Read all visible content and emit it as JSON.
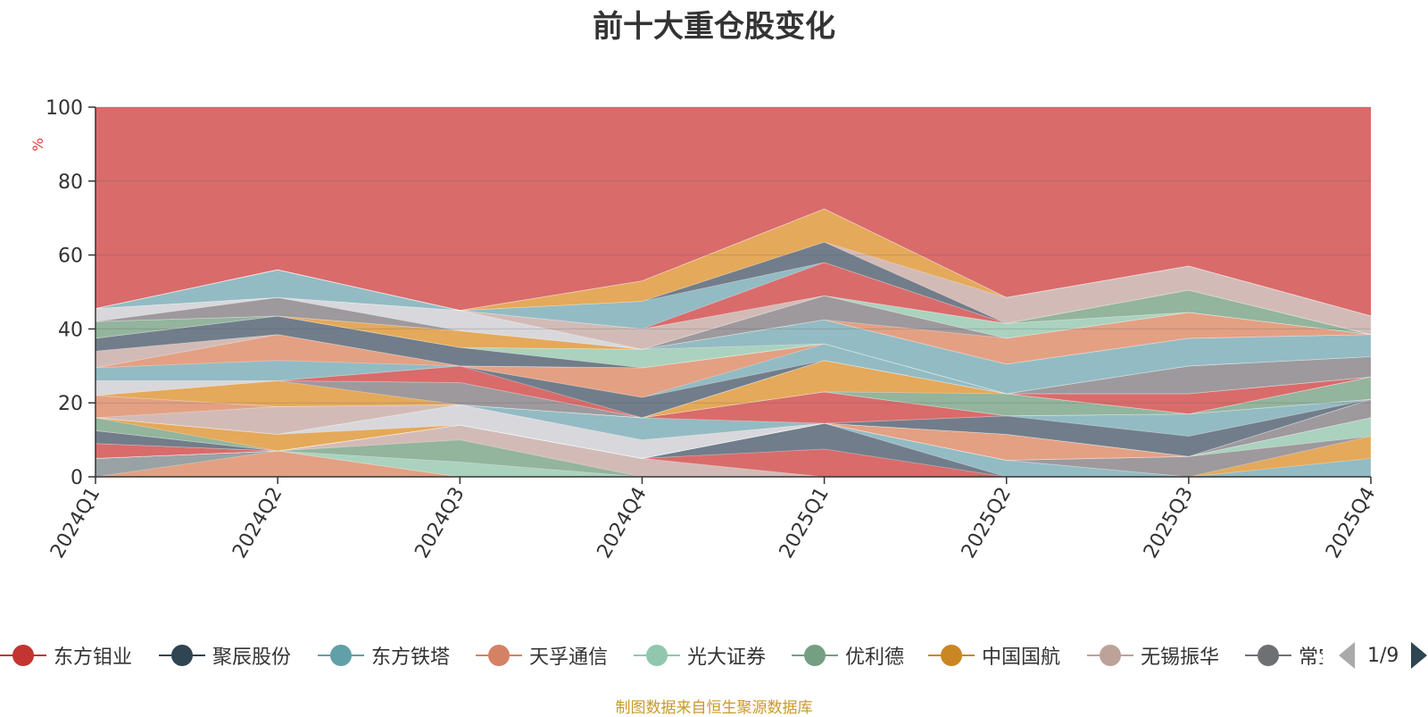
{
  "title": "前十大重仓股变化",
  "source_note": "制图数据来自恒生聚源数据库",
  "legend_pager": "1/9",
  "chart_data": {
    "type": "area",
    "stacked": true,
    "title": "前十大重仓股变化",
    "ylabel": "%",
    "ylim": [
      0,
      100
    ],
    "yticks": [
      0,
      20,
      40,
      60,
      80,
      100
    ],
    "grid": true,
    "legend_position": "bottom",
    "categories": [
      "2024Q1",
      "2024Q2",
      "2024Q3",
      "2024Q4",
      "2025Q1",
      "2025Q2",
      "2025Q3",
      "2025Q4"
    ],
    "series": [
      {
        "name": "",
        "color": "#e4a385",
        "values": [
          0,
          7,
          0,
          0,
          0,
          0,
          0,
          0
        ]
      },
      {
        "name": "",
        "color": "#96a5a8",
        "values": [
          5,
          0,
          0,
          0,
          0,
          0,
          0,
          0
        ]
      },
      {
        "name": "",
        "color": "#a8d8c3",
        "values": [
          0,
          0,
          4,
          0,
          0,
          0,
          0,
          0
        ]
      },
      {
        "name": "",
        "color": "#8fb8a0",
        "values": [
          0,
          0,
          6,
          0,
          0,
          0,
          0,
          0
        ]
      },
      {
        "name": "",
        "color": "#d2c0bc",
        "values": [
          0,
          0,
          4,
          5,
          0,
          0,
          0,
          0
        ]
      },
      {
        "name": "",
        "color": "#d96b6b",
        "values": [
          0,
          0,
          0,
          0,
          7.5,
          0,
          0,
          0
        ]
      },
      {
        "name": "",
        "color": "#6c7e8c",
        "values": [
          0,
          0,
          0,
          0,
          7,
          0,
          0,
          0
        ]
      },
      {
        "name": "",
        "color": "#8fc0c8",
        "values": [
          0,
          0,
          0,
          0,
          0,
          4.5,
          0,
          5
        ]
      },
      {
        "name": "",
        "color": "#e5ad5a",
        "values": [
          0,
          0,
          0,
          0,
          0,
          0,
          0,
          6
        ]
      },
      {
        "name": "",
        "color": "#9a9ca0",
        "values": [
          0,
          0,
          0,
          0,
          0,
          0,
          5.5,
          0
        ]
      },
      {
        "name": "",
        "color": "#a8d8c3",
        "values": [
          0,
          0,
          0,
          0,
          0,
          0,
          0,
          5
        ]
      },
      {
        "name": "",
        "color": "#d96b6b",
        "values": [
          4,
          0,
          0,
          0,
          0,
          0,
          0,
          0
        ]
      },
      {
        "name": "",
        "color": "#d2c0bc",
        "values": [
          0,
          0,
          0,
          0,
          0,
          0,
          0,
          0
        ]
      },
      {
        "name": "",
        "color": "#6c7e8c",
        "values": [
          3.5,
          0,
          0,
          0,
          0,
          0,
          0,
          0
        ]
      },
      {
        "name": "",
        "color": "#e4a385",
        "values": [
          0,
          0,
          0,
          0,
          0,
          7,
          0,
          0
        ]
      },
      {
        "name": "",
        "color": "#9a9ca0",
        "values": [
          0,
          0,
          0,
          0,
          0,
          0,
          0,
          5
        ]
      },
      {
        "name": "",
        "color": "#8fb8a0",
        "values": [
          3.5,
          0,
          0,
          0,
          0,
          0,
          0,
          0
        ]
      },
      {
        "name": "",
        "color": "#e5ad5a",
        "values": [
          0,
          4.5,
          0,
          0,
          0,
          0,
          0,
          0
        ]
      },
      {
        "name": "",
        "color": "#d8dde2",
        "values": [
          0,
          0,
          5.5,
          5,
          0,
          0,
          0,
          0
        ]
      },
      {
        "name": "",
        "color": "#6c7e8c",
        "values": [
          0,
          0,
          0,
          0,
          0,
          5,
          5.5,
          0
        ]
      },
      {
        "name": "",
        "color": "#8fc0c8",
        "values": [
          0,
          0,
          0,
          6,
          0,
          0,
          6,
          0
        ]
      },
      {
        "name": "",
        "color": "#d96b6b",
        "values": [
          0,
          0,
          0,
          0,
          8.5,
          0,
          0,
          0
        ]
      },
      {
        "name": "",
        "color": "#d2c0bc",
        "values": [
          0,
          7.5,
          0,
          0,
          0,
          0,
          0,
          0
        ]
      },
      {
        "name": "",
        "color": "#e4a385",
        "values": [
          6,
          0,
          0,
          0,
          0,
          0,
          0,
          0
        ]
      },
      {
        "name": "",
        "color": "#8fb8a0",
        "values": [
          0,
          0,
          0,
          0,
          0,
          6,
          0,
          6
        ]
      },
      {
        "name": "",
        "color": "#e5ad5a",
        "values": [
          0,
          7,
          0,
          0,
          8.5,
          0,
          0,
          0
        ]
      },
      {
        "name": "",
        "color": "#9a9ca0",
        "values": [
          0,
          0,
          6,
          0,
          0,
          0,
          0,
          0
        ]
      },
      {
        "name": "",
        "color": "#d8dde2",
        "values": [
          4,
          0,
          0,
          0,
          0,
          0,
          0,
          0
        ]
      },
      {
        "name": "",
        "color": "#d96b6b",
        "values": [
          0,
          0,
          4.5,
          0,
          0,
          0,
          5.5,
          0
        ]
      },
      {
        "name": "",
        "color": "#6c7e8c",
        "values": [
          0,
          0,
          0,
          5.5,
          0,
          0,
          0,
          0
        ]
      },
      {
        "name": "",
        "color": "#8fc0c8",
        "values": [
          3.5,
          5.5,
          0,
          0,
          4.5,
          0,
          0,
          0
        ]
      },
      {
        "name": "",
        "color": "#e4a385",
        "values": [
          0,
          7,
          0,
          8,
          0,
          0,
          0,
          0
        ]
      },
      {
        "name": "",
        "color": "#9a9ca0",
        "values": [
          0,
          0,
          0,
          0,
          0,
          0,
          7.5,
          5.5
        ]
      },
      {
        "name": "",
        "color": "#d2c0bc",
        "values": [
          4.5,
          0,
          0,
          0,
          0,
          0,
          0,
          0
        ]
      },
      {
        "name": "",
        "color": "#6c7e8c",
        "values": [
          3.5,
          5,
          5,
          0,
          0,
          0,
          0,
          0
        ]
      },
      {
        "name": "",
        "color": "#a8d8c3",
        "values": [
          0,
          0,
          0,
          5,
          0,
          0,
          0,
          0
        ]
      },
      {
        "name": "",
        "color": "#8fc0c8",
        "values": [
          0,
          0,
          0,
          0,
          6.5,
          8,
          7.5,
          6
        ]
      },
      {
        "name": "",
        "color": "#8fb8a0",
        "values": [
          4.5,
          0,
          0,
          0,
          0,
          0,
          0,
          0
        ]
      },
      {
        "name": "",
        "color": "#e5ad5a",
        "values": [
          0,
          0,
          4.5,
          0,
          0,
          0,
          0,
          0
        ]
      },
      {
        "name": "",
        "color": "#e4a385",
        "values": [
          0,
          0,
          0,
          0,
          0,
          7,
          7,
          0
        ]
      },
      {
        "name": "",
        "color": "#9a9ca0",
        "values": [
          0,
          5,
          0,
          0,
          6.5,
          0,
          0,
          0
        ]
      },
      {
        "name": "",
        "color": "#d8dde2",
        "values": [
          3.5,
          0,
          5.5,
          0,
          0,
          0,
          0,
          0
        ]
      },
      {
        "name": "",
        "color": "#a8d8c3",
        "values": [
          0,
          0,
          0,
          0,
          0,
          4,
          0,
          0
        ]
      },
      {
        "name": "",
        "color": "#d2c0bc",
        "values": [
          0,
          0,
          0,
          5.5,
          0,
          0,
          0,
          0
        ]
      },
      {
        "name": "",
        "color": "#8fb8a0",
        "values": [
          0,
          0,
          0,
          0,
          0,
          0,
          6,
          0
        ]
      },
      {
        "name": "",
        "color": "#d96b6b",
        "values": [
          0,
          0,
          0,
          0,
          9,
          0,
          0,
          0
        ]
      },
      {
        "name": "",
        "color": "#8fc0c8",
        "values": [
          0,
          7.5,
          0,
          7.5,
          0,
          0,
          0,
          0
        ]
      },
      {
        "name": "",
        "color": "#6c7e8c",
        "values": [
          0,
          0,
          0,
          0,
          5.5,
          0,
          0,
          0
        ]
      },
      {
        "name": "",
        "color": "#d2c0bc",
        "values": [
          0,
          0,
          0,
          0,
          0,
          7,
          6.5,
          5
        ]
      },
      {
        "name": "",
        "color": "#e5ad5a",
        "values": [
          0,
          0,
          0,
          5.5,
          9,
          0,
          0,
          0
        ]
      },
      {
        "name": "",
        "color": "#d8dde2",
        "values": [
          0,
          0,
          0,
          0,
          0,
          0,
          0,
          0
        ]
      },
      {
        "name": "",
        "color": "#9a9ca0",
        "values": [
          0,
          0,
          0,
          0,
          0,
          0,
          0,
          0
        ]
      }
    ],
    "top_fill": {
      "color": "#d96b6b"
    }
  },
  "legend": {
    "items": [
      {
        "label": "东方钼业",
        "color": "#c23531"
      },
      {
        "label": "聚辰股份",
        "color": "#2f4554"
      },
      {
        "label": "东方铁塔",
        "color": "#61a0a8"
      },
      {
        "label": "天孚通信",
        "color": "#d48265"
      },
      {
        "label": "光大证券",
        "color": "#91c7ae"
      },
      {
        "label": "优利德",
        "color": "#749f83"
      },
      {
        "label": "中国国航",
        "color": "#ca8622"
      },
      {
        "label": "无锡振华",
        "color": "#bda29a"
      },
      {
        "label": "常宝股份",
        "color": "#6e7074"
      }
    ]
  }
}
